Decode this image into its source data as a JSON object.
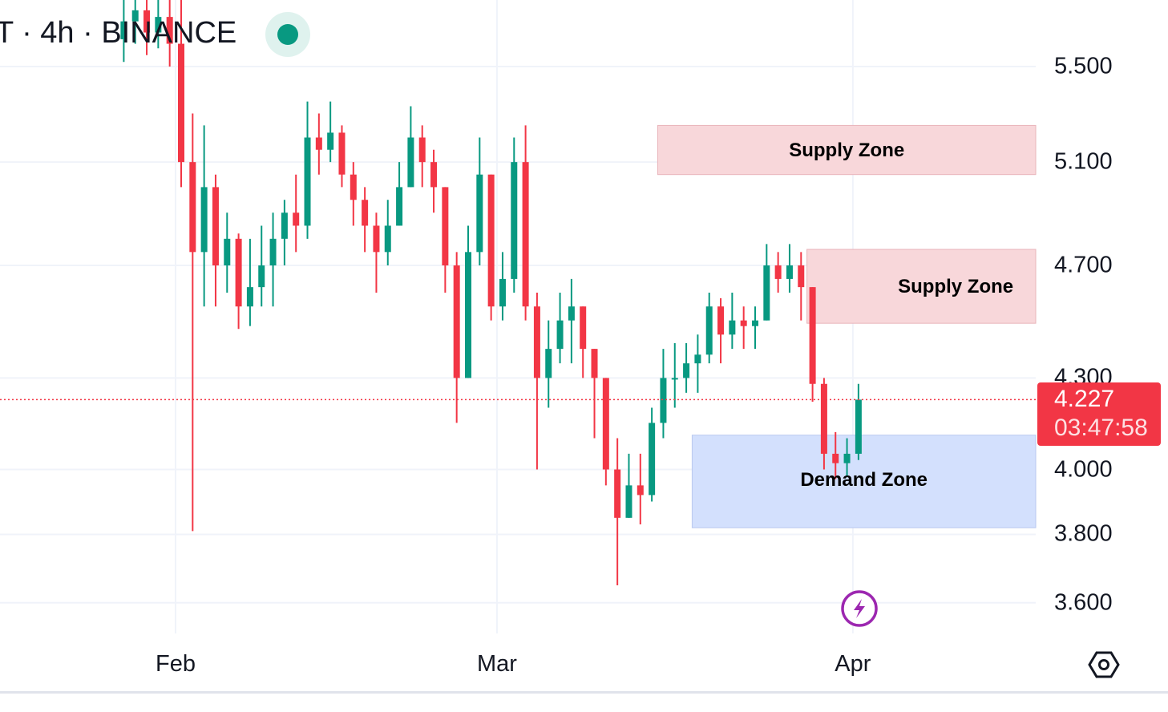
{
  "header": {
    "title": "T · 4h · BINANCE",
    "status": "live"
  },
  "price_tag": {
    "price": "4.227",
    "countdown": "03:47:58",
    "color": "#f23645"
  },
  "colors": {
    "up": "#089981",
    "down": "#f23645",
    "supply": "#f8d7da",
    "demand": "#d3e0fd",
    "grid": "#f0f3fa"
  },
  "icons": {
    "live": "live-dot-icon",
    "alert": "lightning-icon",
    "settings": "hexagon-settings-icon"
  },
  "chart_data": {
    "type": "candlestick",
    "y_scale": "log",
    "ylim": [
      3.48,
      5.8
    ],
    "yticks": [
      "5.500",
      "5.100",
      "4.700",
      "4.300",
      "4.000",
      "3.800",
      "3.600"
    ],
    "xticks": [
      {
        "label": "Feb",
        "date": "Feb 1"
      },
      {
        "label": "Mar",
        "date": "Mar 1"
      },
      {
        "label": "Apr",
        "date": "Apr 1"
      }
    ],
    "grid": true,
    "last_price": 4.227,
    "zones": [
      {
        "label": "Supply Zone",
        "from": "Mar 15",
        "top": 5.25,
        "bottom": 5.05,
        "kind": "supply"
      },
      {
        "label": "Supply Zone",
        "from": "Mar 28",
        "top": 4.76,
        "bottom": 4.49,
        "kind": "supply"
      },
      {
        "label": "Demand Zone",
        "from": "Mar 18",
        "top": 4.11,
        "bottom": 3.82,
        "kind": "demand"
      }
    ],
    "candles": [
      [
        "Jan 27",
        5.62,
        5.85,
        5.52,
        5.7
      ],
      [
        "Jan 28",
        5.7,
        5.9,
        5.6,
        5.75
      ],
      [
        "Jan 29",
        5.75,
        5.85,
        5.55,
        5.65
      ],
      [
        "Jan 30",
        5.65,
        5.85,
        5.58,
        5.72
      ],
      [
        "Jan 31",
        5.72,
        5.8,
        5.5,
        5.6
      ],
      [
        "Feb 1",
        5.6,
        5.8,
        5.0,
        5.1
      ],
      [
        "Feb 2",
        5.1,
        5.3,
        3.81,
        4.75
      ],
      [
        "Feb 3",
        4.75,
        5.25,
        4.55,
        5.0
      ],
      [
        "Feb 4",
        5.0,
        5.05,
        4.55,
        4.7
      ],
      [
        "Feb 5",
        4.7,
        4.9,
        4.6,
        4.8
      ],
      [
        "Feb 6",
        4.8,
        4.82,
        4.47,
        4.55
      ],
      [
        "Feb 7",
        4.55,
        4.8,
        4.48,
        4.62
      ],
      [
        "Feb 8",
        4.62,
        4.85,
        4.55,
        4.7
      ],
      [
        "Feb 9",
        4.7,
        4.9,
        4.55,
        4.8
      ],
      [
        "Feb 10",
        4.8,
        4.95,
        4.7,
        4.9
      ],
      [
        "Feb 11",
        4.9,
        5.05,
        4.75,
        4.85
      ],
      [
        "Feb 12",
        4.85,
        5.35,
        4.8,
        5.2
      ],
      [
        "Feb 13",
        5.2,
        5.3,
        5.05,
        5.15
      ],
      [
        "Feb 14",
        5.15,
        5.35,
        5.1,
        5.22
      ],
      [
        "Feb 15",
        5.22,
        5.25,
        5.0,
        5.05
      ],
      [
        "Feb 16",
        5.05,
        5.1,
        4.85,
        4.95
      ],
      [
        "Feb 17",
        4.95,
        5.0,
        4.75,
        4.85
      ],
      [
        "Feb 18",
        4.85,
        4.9,
        4.6,
        4.75
      ],
      [
        "Feb 19",
        4.75,
        4.95,
        4.7,
        4.85
      ],
      [
        "Feb 20",
        4.85,
        5.1,
        4.85,
        5.0
      ],
      [
        "Feb 21",
        5.0,
        5.33,
        5.0,
        5.2
      ],
      [
        "Feb 22",
        5.2,
        5.25,
        5.0,
        5.1
      ],
      [
        "Feb 23",
        5.1,
        5.15,
        4.9,
        5.0
      ],
      [
        "Feb 24",
        5.0,
        5.0,
        4.6,
        4.7
      ],
      [
        "Feb 25",
        4.7,
        4.75,
        4.15,
        4.3
      ],
      [
        "Feb 26",
        4.3,
        4.85,
        4.3,
        4.75
      ],
      [
        "Feb 27",
        4.75,
        5.2,
        4.7,
        5.05
      ],
      [
        "Feb 28",
        5.05,
        5.05,
        4.5,
        4.55
      ],
      [
        "Mar 1",
        4.55,
        4.75,
        4.5,
        4.65
      ],
      [
        "Mar 2",
        4.65,
        5.2,
        4.6,
        5.1
      ],
      [
        "Mar 3",
        5.1,
        5.25,
        4.5,
        4.55
      ],
      [
        "Mar 4",
        4.55,
        4.6,
        4.0,
        4.3
      ],
      [
        "Mar 5",
        4.3,
        4.5,
        4.2,
        4.4
      ],
      [
        "Mar 6",
        4.4,
        4.6,
        4.35,
        4.5
      ],
      [
        "Mar 7",
        4.5,
        4.65,
        4.35,
        4.55
      ],
      [
        "Mar 8",
        4.55,
        4.55,
        4.3,
        4.4
      ],
      [
        "Mar 9",
        4.4,
        4.4,
        4.1,
        4.3
      ],
      [
        "Mar 10",
        4.3,
        4.3,
        3.95,
        4.0
      ],
      [
        "Mar 11",
        4.0,
        4.1,
        3.65,
        3.85
      ],
      [
        "Mar 12",
        3.85,
        4.05,
        3.85,
        3.95
      ],
      [
        "Mar 13",
        3.95,
        4.05,
        3.83,
        3.92
      ],
      [
        "Mar 14",
        3.92,
        4.2,
        3.9,
        4.15
      ],
      [
        "Mar 15",
        4.15,
        4.4,
        4.1,
        4.3
      ],
      [
        "Mar 16",
        4.3,
        4.42,
        4.2,
        4.3
      ],
      [
        "Mar 17",
        4.3,
        4.42,
        4.25,
        4.35
      ],
      [
        "Mar 18",
        4.35,
        4.45,
        4.25,
        4.38
      ],
      [
        "Mar 19",
        4.38,
        4.6,
        4.35,
        4.55
      ],
      [
        "Mar 20",
        4.55,
        4.58,
        4.35,
        4.45
      ],
      [
        "Mar 21",
        4.45,
        4.6,
        4.4,
        4.5
      ],
      [
        "Mar 22",
        4.5,
        4.55,
        4.4,
        4.48
      ],
      [
        "Mar 23",
        4.48,
        4.55,
        4.4,
        4.5
      ],
      [
        "Mar 24",
        4.5,
        4.78,
        4.5,
        4.7
      ],
      [
        "Mar 25",
        4.7,
        4.75,
        4.6,
        4.65
      ],
      [
        "Mar 26",
        4.65,
        4.78,
        4.6,
        4.7
      ],
      [
        "Mar 27",
        4.7,
        4.75,
        4.5,
        4.62
      ],
      [
        "Mar 28",
        4.62,
        4.62,
        4.22,
        4.28
      ],
      [
        "Mar 29",
        4.28,
        4.3,
        4.0,
        4.05
      ],
      [
        "Mar 30",
        4.05,
        4.12,
        3.97,
        4.02
      ],
      [
        "Mar 31",
        4.02,
        4.1,
        3.98,
        4.05
      ],
      [
        "Apr 1",
        4.05,
        4.28,
        4.03,
        4.227
      ]
    ]
  }
}
